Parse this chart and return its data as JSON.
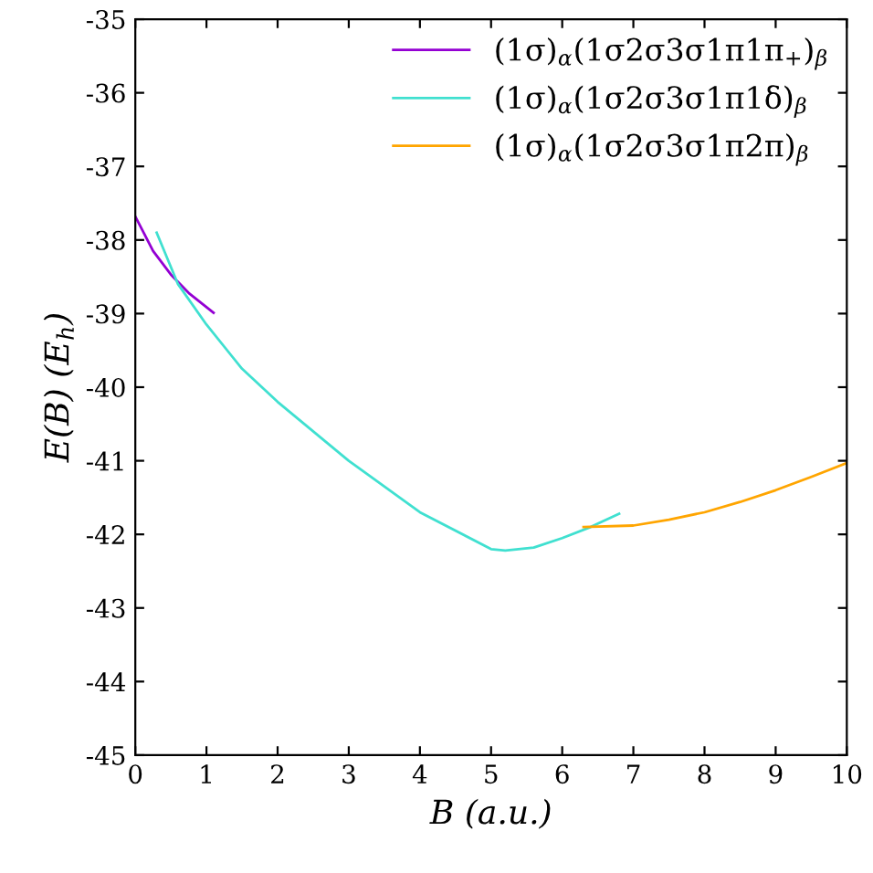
{
  "chart_data": {
    "type": "line",
    "xlabel": "B (a.u.)",
    "ylabel": "E(B) (E$_{h}$)",
    "xlim": [
      0,
      10
    ],
    "ylim": [
      -45,
      -35
    ],
    "xticks": [
      0,
      1,
      2,
      3,
      4,
      5,
      6,
      7,
      8,
      9,
      10
    ],
    "yticks": [
      -45,
      -44,
      -43,
      -42,
      -41,
      -40,
      -39,
      -38,
      -37,
      -36,
      -35
    ],
    "grid": false,
    "legend": "top right",
    "marker": "none",
    "line_style": "solid",
    "series": [
      {
        "name": "(1σ)$_{α}$(1σ2σ3σ1π1π$_{+}$)$_{β}$",
        "color": "#9400d3",
        "x": [
          0,
          0.25,
          0.5,
          0.75,
          1.1
        ],
        "values": [
          -37.68,
          -38.15,
          -38.47,
          -38.72,
          -38.99
        ]
      },
      {
        "name": "(1σ)$_{α}$(1σ2σ3σ1π1δ)$_{β}$",
        "color": "#40e0d0",
        "x": [
          0.3,
          0.6,
          1,
          1.5,
          2,
          3,
          4,
          5,
          5.2,
          5.6,
          6,
          6.4,
          6.8
        ],
        "values": [
          -37.9,
          -38.6,
          -39.15,
          -39.75,
          -40.2,
          -41.0,
          -41.7,
          -42.2,
          -42.22,
          -42.18,
          -42.05,
          -41.9,
          -41.72
        ]
      },
      {
        "name": "(1σ)$_{α}$(1σ2σ3σ1π2π)$_{β}$",
        "color": "#ffa500",
        "x": [
          6.3,
          7,
          7.5,
          8,
          8.5,
          9,
          9.5,
          10
        ],
        "values": [
          -41.9,
          -41.88,
          -41.8,
          -41.7,
          -41.56,
          -41.4,
          -41.22,
          -41.03
        ]
      }
    ]
  }
}
